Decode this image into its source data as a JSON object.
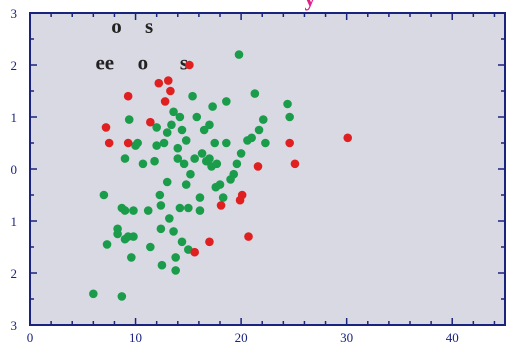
{
  "chart_data": {
    "type": "scatter",
    "title": "y",
    "xlim": [
      0,
      45
    ],
    "ylim": [
      -3,
      3
    ],
    "x_ticks": [
      0,
      10,
      20,
      30,
      40
    ],
    "x_tick_labels": [
      "0",
      "10",
      "20",
      "30",
      "40"
    ],
    "y_ticks": [
      3,
      2,
      1,
      0,
      -1,
      -2,
      -3
    ],
    "y_tick_labels": [
      "3",
      "2",
      "1",
      "0",
      "1",
      "2",
      "3"
    ],
    "grid": false,
    "annotations": [
      {
        "text": "o",
        "x": 7.7,
        "y": 2.75
      },
      {
        "text": "s",
        "x": 10.9,
        "y": 2.75
      },
      {
        "text": "ee",
        "x": 6.2,
        "y": 2.05
      },
      {
        "text": "o",
        "x": 10.2,
        "y": 2.05
      },
      {
        "text": "s",
        "x": 14.2,
        "y": 2.05
      }
    ],
    "series": [
      {
        "color": "#1a9c4b",
        "points": [
          [
            6,
            -2.4
          ],
          [
            8.7,
            -2.45
          ],
          [
            7,
            -0.5
          ],
          [
            7.3,
            -1.45
          ],
          [
            8.3,
            -1.25
          ],
          [
            8.3,
            -1.15
          ],
          [
            8.7,
            -0.75
          ],
          [
            9,
            -1.35
          ],
          [
            9,
            -0.8
          ],
          [
            9.3,
            -1.3
          ],
          [
            9.6,
            -1.7
          ],
          [
            9.8,
            -0.8
          ],
          [
            9.8,
            -1.3
          ],
          [
            9,
            0.2
          ],
          [
            9.4,
            0.95
          ],
          [
            10,
            0.45
          ],
          [
            10.2,
            0.5
          ],
          [
            10.7,
            0.1
          ],
          [
            11.2,
            -0.8
          ],
          [
            11.4,
            -1.5
          ],
          [
            11.8,
            0.15
          ],
          [
            12,
            0.45
          ],
          [
            12,
            0.8
          ],
          [
            12.3,
            -0.5
          ],
          [
            12.4,
            -0.7
          ],
          [
            12.4,
            -1.15
          ],
          [
            12.5,
            -1.85
          ],
          [
            12.7,
            0.5
          ],
          [
            13,
            -0.25
          ],
          [
            13,
            0.7
          ],
          [
            13.2,
            -0.95
          ],
          [
            13.4,
            0.85
          ],
          [
            13.6,
            1.1
          ],
          [
            13.6,
            -1.2
          ],
          [
            13.8,
            -1.7
          ],
          [
            13.8,
            -1.95
          ],
          [
            14,
            0.4
          ],
          [
            14,
            0.2
          ],
          [
            14.2,
            1.0
          ],
          [
            14.2,
            -0.75
          ],
          [
            14.4,
            0.75
          ],
          [
            14.4,
            -1.4
          ],
          [
            14.6,
            0.1
          ],
          [
            14.8,
            0.55
          ],
          [
            14.8,
            -0.3
          ],
          [
            15,
            -1.55
          ],
          [
            15,
            -0.75
          ],
          [
            15.2,
            -0.1
          ],
          [
            15.4,
            1.4
          ],
          [
            15.6,
            0.2
          ],
          [
            15.8,
            1.0
          ],
          [
            16.1,
            -0.55
          ],
          [
            16.1,
            -0.8
          ],
          [
            16.3,
            0.3
          ],
          [
            16.5,
            0.75
          ],
          [
            16.7,
            0.15
          ],
          [
            17,
            0.85
          ],
          [
            17,
            0.2
          ],
          [
            17.2,
            0.05
          ],
          [
            17.3,
            1.2
          ],
          [
            17.5,
            0.5
          ],
          [
            17.6,
            -0.35
          ],
          [
            17.7,
            0.1
          ],
          [
            18,
            -0.3
          ],
          [
            18.3,
            -0.55
          ],
          [
            18.6,
            1.3
          ],
          [
            18.6,
            0.5
          ],
          [
            19,
            -0.2
          ],
          [
            19.3,
            -0.1
          ],
          [
            19.6,
            0.1
          ],
          [
            19.8,
            2.2
          ],
          [
            20,
            0.3
          ],
          [
            20.6,
            0.55
          ],
          [
            21,
            0.6
          ],
          [
            21.3,
            1.45
          ],
          [
            21.7,
            0.75
          ],
          [
            22.1,
            0.95
          ],
          [
            22.3,
            0.5
          ],
          [
            24.4,
            1.25
          ],
          [
            24.6,
            1.0
          ]
        ]
      },
      {
        "color": "#e02020",
        "points": [
          [
            7.2,
            0.8
          ],
          [
            7.5,
            0.5
          ],
          [
            9.3,
            1.4
          ],
          [
            9.3,
            0.5
          ],
          [
            11.4,
            0.9
          ],
          [
            12.2,
            1.65
          ],
          [
            12.8,
            1.3
          ],
          [
            13.1,
            1.7
          ],
          [
            13.3,
            1.5
          ],
          [
            15.1,
            2.0
          ],
          [
            15.6,
            -1.6
          ],
          [
            17,
            -1.4
          ],
          [
            18.1,
            -0.7
          ],
          [
            19.9,
            -0.6
          ],
          [
            20.1,
            -0.5
          ],
          [
            20.7,
            -1.3
          ],
          [
            21.6,
            0.05
          ],
          [
            24.6,
            0.5
          ],
          [
            25.1,
            0.1
          ],
          [
            30.1,
            0.6
          ]
        ]
      }
    ]
  }
}
